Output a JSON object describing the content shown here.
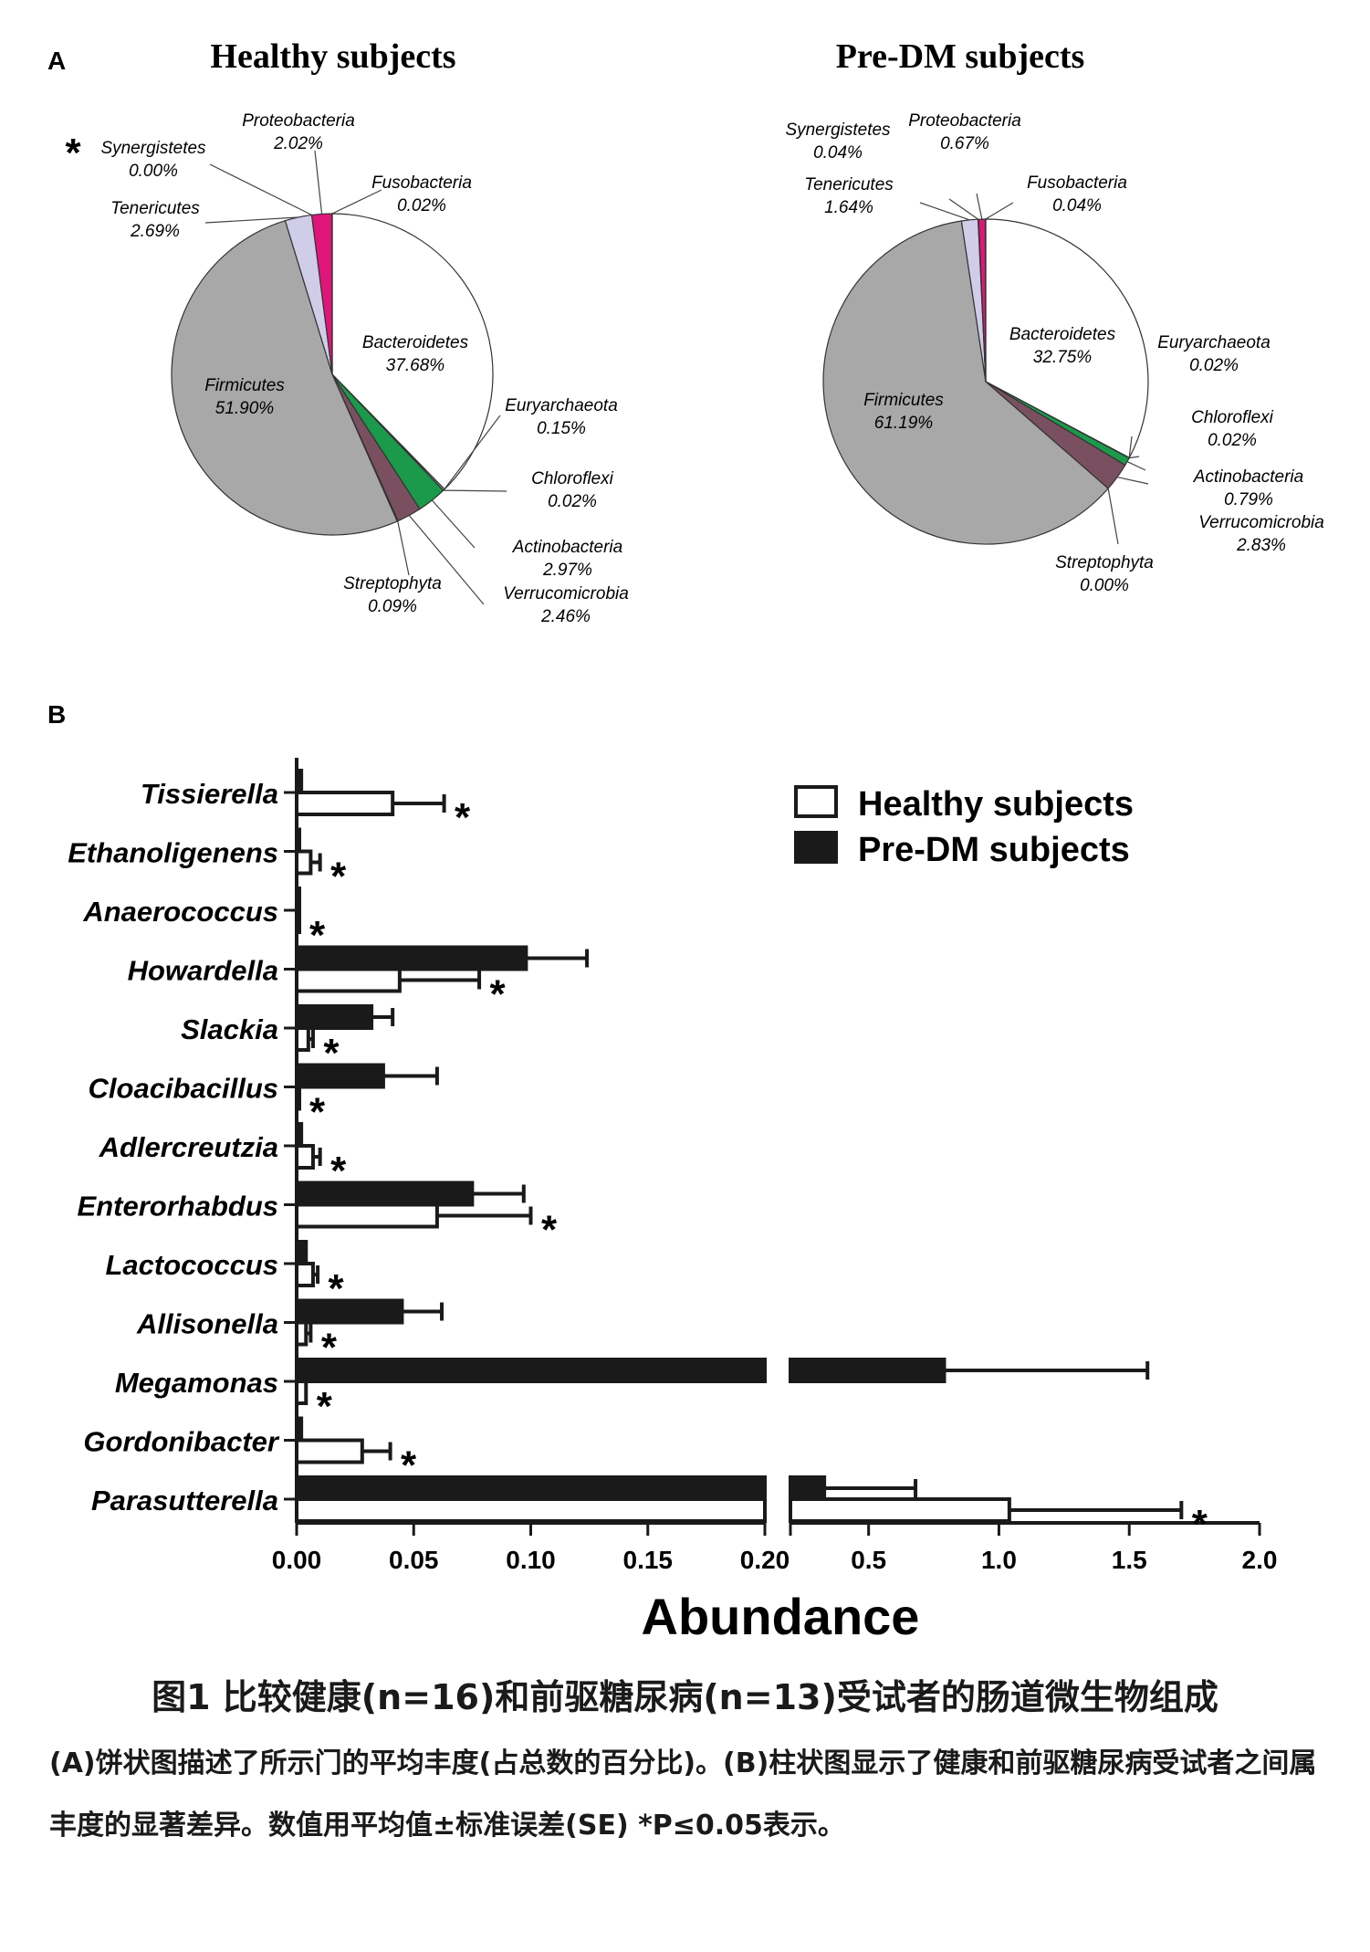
{
  "panel_a_letter": "A",
  "panel_b_letter": "B",
  "chart_data": [
    {
      "type": "pie",
      "title": "Healthy subjects",
      "slices": [
        {
          "label": "Bacteroidetes",
          "value": 37.68,
          "display": "37.68%",
          "color": "#ffffff"
        },
        {
          "label": "Euryarchaeota",
          "value": 0.15,
          "display": "0.15%",
          "color": "#ffffff"
        },
        {
          "label": "Chloroflexi",
          "value": 0.02,
          "display": "0.02%",
          "color": "#ffffff"
        },
        {
          "label": "Actinobacteria",
          "value": 2.97,
          "display": "2.97%",
          "color": "#1a9a4a"
        },
        {
          "label": "Verrucomicrobia",
          "value": 2.46,
          "display": "2.46%",
          "color": "#7a5060"
        },
        {
          "label": "Streptophyta",
          "value": 0.09,
          "display": "0.09%",
          "color": "#7a5060"
        },
        {
          "label": "Firmicutes",
          "value": 51.9,
          "display": "51.90%",
          "color": "#a8a8a8"
        },
        {
          "label": "Tenericutes",
          "value": 2.69,
          "display": "2.69%",
          "color": "#cfcde8"
        },
        {
          "label": "Synergistetes",
          "value": 0.0,
          "display": "0.00%",
          "color": "#ffffff"
        },
        {
          "label": "Proteobacteria",
          "value": 2.02,
          "display": "2.02%",
          "color": "#e0157a"
        },
        {
          "label": "Fusobacteria",
          "value": 0.02,
          "display": "0.02%",
          "color": "#ffffff"
        }
      ],
      "starred": [
        "Synergistetes"
      ]
    },
    {
      "type": "pie",
      "title": "Pre-DM subjects",
      "slices": [
        {
          "label": "Bacteroidetes",
          "value": 32.75,
          "display": "32.75%",
          "color": "#ffffff"
        },
        {
          "label": "Euryarchaeota",
          "value": 0.02,
          "display": "0.02%",
          "color": "#ffffff"
        },
        {
          "label": "Chloroflexi",
          "value": 0.02,
          "display": "0.02%",
          "color": "#ffffff"
        },
        {
          "label": "Actinobacteria",
          "value": 0.79,
          "display": "0.79%",
          "color": "#1a9a4a"
        },
        {
          "label": "Verrucomicrobia",
          "value": 2.83,
          "display": "2.83%",
          "color": "#7a5060"
        },
        {
          "label": "Streptophyta",
          "value": 0.0,
          "display": "0.00%",
          "color": "#7a5060"
        },
        {
          "label": "Firmicutes",
          "value": 61.19,
          "display": "61.19%",
          "color": "#a8a8a8"
        },
        {
          "label": "Tenericutes",
          "value": 1.64,
          "display": "1.64%",
          "color": "#cfcde8"
        },
        {
          "label": "Synergistetes",
          "value": 0.04,
          "display": "0.04%",
          "color": "#ffffff"
        },
        {
          "label": "Proteobacteria",
          "value": 0.67,
          "display": "0.67%",
          "color": "#e0157a"
        },
        {
          "label": "Fusobacteria",
          "value": 0.04,
          "display": "0.04%",
          "color": "#ffffff"
        }
      ]
    },
    {
      "type": "bar",
      "orientation": "horizontal",
      "xlabel": "Abundance",
      "xaxis_break": {
        "segment1": [
          0,
          0.2
        ],
        "segment2": [
          0.2,
          2.0
        ]
      },
      "ticks_segment1": [
        "0.00",
        "0.05",
        "0.10",
        "0.15",
        "0.20"
      ],
      "ticks_segment2": [
        "0.5",
        "1.0",
        "1.5",
        "2.0"
      ],
      "tick_values_segment1": [
        0,
        0.05,
        0.1,
        0.15,
        0.2
      ],
      "tick_values_segment2": [
        0.5,
        1.0,
        1.5,
        2.0
      ],
      "legend": [
        {
          "name": "Healthy subjects",
          "fill": "#ffffff"
        },
        {
          "name": "Pre-DM subjects",
          "fill": "#1a1a1a"
        }
      ],
      "legend_position": "top-right",
      "categories": [
        "Tissierella",
        "Ethanoligenens",
        "Anaerococcus",
        "Howardella",
        "Slackia",
        "Cloacibacillus",
        "Adlercreutzia",
        "Enterorhabdus",
        "Lactococcus",
        "Allisonella",
        "Megamonas",
        "Gordonibacter",
        "Parasutterella"
      ],
      "series": [
        {
          "name": "Pre-DM subjects",
          "values": [
            0.002,
            0.001,
            0.0005,
            0.098,
            0.032,
            0.037,
            0.002,
            0.075,
            0.004,
            0.045,
            0.79,
            0.002,
            0.33
          ],
          "errors": [
            0.0,
            0.0,
            0.0,
            0.026,
            0.009,
            0.023,
            0.0,
            0.022,
            0.0,
            0.017,
            0.78,
            0.0,
            0.35
          ]
        },
        {
          "name": "Healthy subjects",
          "values": [
            0.041,
            0.006,
            0.001,
            0.044,
            0.005,
            0.001,
            0.007,
            0.06,
            0.007,
            0.004,
            0.004,
            0.028,
            1.04
          ],
          "errors": [
            0.022,
            0.004,
            0.0,
            0.034,
            0.002,
            0.0,
            0.003,
            0.04,
            0.002,
            0.002,
            0.0,
            0.012,
            0.66
          ]
        }
      ],
      "significance_marker": "*"
    }
  ],
  "caption": {
    "title": "图1 比较健康(n=16)和前驱糖尿病(n=13)受试者的肠道微生物组成",
    "body": "(A)饼状图描述了所示门的平均丰度(占总数的百分比)。(B)柱状图显示了健康和前驱糖尿病受试者之间属丰度的显著差异。数值用平均值±标准误差(SE) *P≤0.05表示。"
  }
}
